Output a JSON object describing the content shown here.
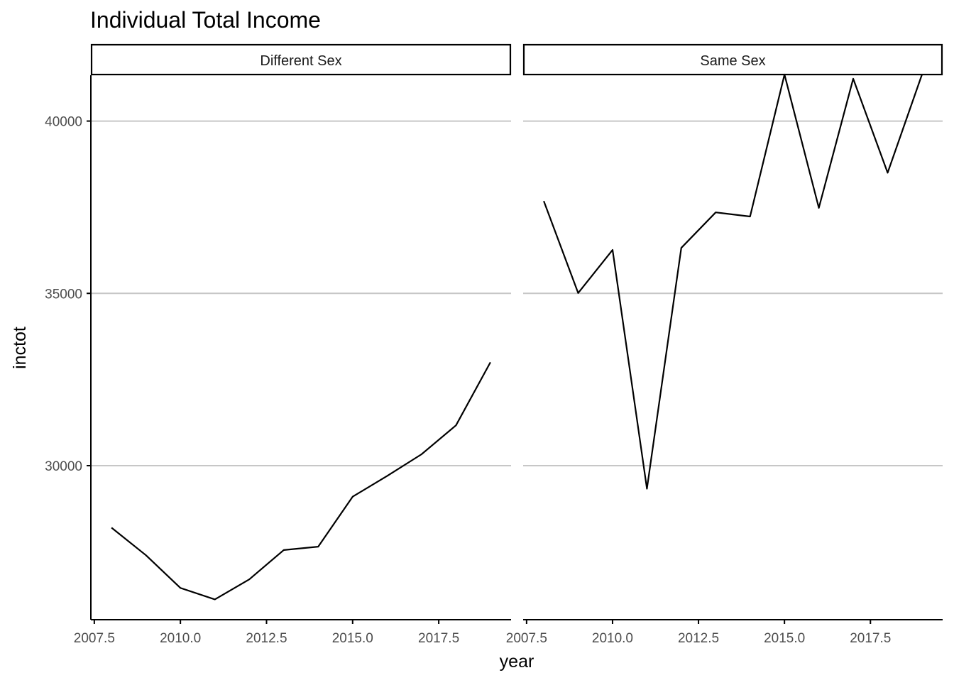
{
  "chart_data": {
    "type": "line",
    "title": "Individual Total Income",
    "xlabel": "year",
    "ylabel": "inctot",
    "xlim": [
      2007.4,
      2019.6
    ],
    "ylim": [
      25530,
      41330
    ],
    "x_ticks": [
      2007.5,
      2010.0,
      2012.5,
      2015.0,
      2017.5
    ],
    "x_tick_labels": [
      "2007.5",
      "2010.0",
      "2012.5",
      "2015.0",
      "2017.5"
    ],
    "y_ticks": [
      30000,
      35000,
      40000
    ],
    "y_tick_labels": [
      "30000",
      "35000",
      "40000"
    ],
    "grid": "horizontal major",
    "line_color": "#000000",
    "panels": [
      {
        "name": "Different Sex",
        "x": [
          2008,
          2009,
          2010,
          2011,
          2012,
          2013,
          2014,
          2015,
          2016,
          2017,
          2018,
          2019
        ],
        "y": [
          28200,
          27400,
          26450,
          26120,
          26700,
          27550,
          27650,
          29100,
          29700,
          30330,
          31170,
          33000
        ]
      },
      {
        "name": "Same Sex",
        "x": [
          2008,
          2009,
          2010,
          2011,
          2012,
          2013,
          2014,
          2015,
          2016,
          2017,
          2018,
          2019
        ],
        "y": [
          37680,
          35010,
          36260,
          29330,
          36320,
          37350,
          37230,
          41350,
          37480,
          41230,
          38500,
          41350
        ]
      }
    ]
  }
}
